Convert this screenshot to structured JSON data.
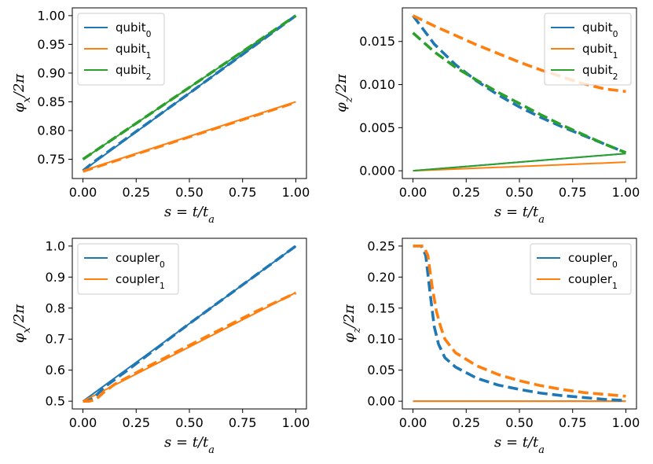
{
  "chart_data": [
    {
      "type": "line",
      "xlabel": "s = t/t_a",
      "ylabel": "φ_x/2π",
      "xlim": [
        -0.05,
        1.05
      ],
      "ylim": [
        0.7165,
        1.0135
      ],
      "xticks": [
        "0.00",
        "0.25",
        "0.50",
        "0.75",
        "1.00"
      ],
      "yticks": [
        "0.75",
        "0.80",
        "0.85",
        "0.90",
        "0.95",
        "1.00"
      ],
      "legend_position": "top-left",
      "series": [
        {
          "name": "qubit_0",
          "color": "#1f77b4",
          "style": "solid",
          "x": [
            0,
            1
          ],
          "y": [
            0.73,
            1.0
          ]
        },
        {
          "name": "qubit_1",
          "color": "#ff7f0e",
          "style": "solid",
          "x": [
            0,
            1
          ],
          "y": [
            0.73,
            0.85
          ]
        },
        {
          "name": "qubit_2",
          "color": "#2ca02c",
          "style": "solid",
          "x": [
            0,
            1
          ],
          "y": [
            0.75,
            1.0
          ]
        },
        {
          "color": "#1f77b4",
          "style": "dashed",
          "x": [
            0,
            0.05,
            0.5,
            1
          ],
          "y": [
            0.73,
            0.745,
            0.865,
            1.0
          ]
        },
        {
          "color": "#ff7f0e",
          "style": "dashed",
          "x": [
            0,
            1
          ],
          "y": [
            0.729,
            0.849
          ]
        },
        {
          "color": "#2ca02c",
          "style": "dashed",
          "x": [
            0,
            1
          ],
          "y": [
            0.75,
            1.0
          ]
        }
      ]
    },
    {
      "type": "line",
      "xlabel": "s = t/t_a",
      "ylabel": "φ_z/2π",
      "xlim": [
        -0.05,
        1.05
      ],
      "ylim": [
        -0.0009,
        0.0189
      ],
      "xticks": [
        "0.00",
        "0.25",
        "0.50",
        "0.75",
        "1.00"
      ],
      "yticks": [
        "0.000",
        "0.005",
        "0.010",
        "0.015"
      ],
      "legend_position": "top-right",
      "series": [
        {
          "name": "qubit_0",
          "color": "#1f77b4",
          "style": "solid",
          "x": [
            0,
            1
          ],
          "y": [
            0,
            0.002
          ]
        },
        {
          "name": "qubit_1",
          "color": "#ff7f0e",
          "style": "solid",
          "x": [
            0,
            1
          ],
          "y": [
            0,
            0.001
          ]
        },
        {
          "name": "qubit_2",
          "color": "#2ca02c",
          "style": "solid",
          "x": [
            0,
            1
          ],
          "y": [
            0,
            0.002
          ]
        },
        {
          "color": "#1f77b4",
          "style": "dashed",
          "x": [
            0,
            0.1,
            0.2,
            0.3,
            0.4,
            0.5,
            0.6,
            0.7,
            0.8,
            0.9,
            1.0
          ],
          "y": [
            0.018,
            0.0147,
            0.0123,
            0.0104,
            0.0088,
            0.0074,
            0.0062,
            0.0051,
            0.0041,
            0.0031,
            0.0021
          ]
        },
        {
          "color": "#ff7f0e",
          "style": "dashed",
          "x": [
            0,
            0.1,
            0.2,
            0.3,
            0.4,
            0.5,
            0.6,
            0.7,
            0.8,
            0.9,
            1.0
          ],
          "y": [
            0.018,
            0.0168,
            0.0157,
            0.0146,
            0.0136,
            0.0126,
            0.0117,
            0.0109,
            0.0101,
            0.0095,
            0.0092
          ]
        },
        {
          "color": "#2ca02c",
          "style": "dashed",
          "x": [
            0,
            0.1,
            0.2,
            0.3,
            0.4,
            0.5,
            0.6,
            0.7,
            0.8,
            0.9,
            1.0
          ],
          "y": [
            0.016,
            0.0138,
            0.012,
            0.0105,
            0.0091,
            0.0078,
            0.0065,
            0.0053,
            0.0042,
            0.0031,
            0.0021
          ]
        }
      ]
    },
    {
      "type": "line",
      "xlabel": "s = t/t_a",
      "ylabel": "φ_x/2π",
      "xlim": [
        -0.05,
        1.05
      ],
      "ylim": [
        0.475,
        1.025
      ],
      "xticks": [
        "0.00",
        "0.25",
        "0.50",
        "0.75",
        "1.00"
      ],
      "yticks": [
        "0.5",
        "0.6",
        "0.7",
        "0.8",
        "0.9",
        "1.0"
      ],
      "legend_position": "top-left",
      "series": [
        {
          "name": "coupler_0",
          "color": "#1f77b4",
          "style": "solid",
          "x": [
            0,
            1
          ],
          "y": [
            0.5,
            1.0
          ]
        },
        {
          "name": "coupler_1",
          "color": "#ff7f0e",
          "style": "solid",
          "x": [
            0,
            1
          ],
          "y": [
            0.5,
            0.85
          ]
        },
        {
          "color": "#1f77b4",
          "style": "dashed",
          "x": [
            0,
            0.02,
            0.05,
            0.1,
            0.2,
            0.5,
            0.8,
            1.0
          ],
          "y": [
            0.5,
            0.5,
            0.51,
            0.545,
            0.595,
            0.75,
            0.9,
            1.0
          ]
        },
        {
          "color": "#ff7f0e",
          "style": "dashed",
          "x": [
            0,
            0.03,
            0.06,
            0.1,
            0.15,
            0.3,
            0.5,
            0.8,
            1.0
          ],
          "y": [
            0.5,
            0.5,
            0.505,
            0.53,
            0.555,
            0.61,
            0.68,
            0.785,
            0.849
          ]
        }
      ]
    },
    {
      "type": "line",
      "xlabel": "s = t/t_a",
      "ylabel": "φ_z/2π",
      "xlim": [
        -0.05,
        1.05
      ],
      "ylim": [
        -0.0125,
        0.2625
      ],
      "xticks": [
        "0.00",
        "0.25",
        "0.50",
        "0.75",
        "1.00"
      ],
      "yticks": [
        "0.00",
        "0.05",
        "0.10",
        "0.15",
        "0.20",
        "0.25"
      ],
      "legend_position": "top-right",
      "series": [
        {
          "name": "coupler_0",
          "color": "#1f77b4",
          "style": "solid",
          "x": [
            0,
            1
          ],
          "y": [
            0,
            0
          ]
        },
        {
          "name": "coupler_1",
          "color": "#ff7f0e",
          "style": "solid",
          "x": [
            0,
            1
          ],
          "y": [
            0,
            0
          ]
        },
        {
          "color": "#1f77b4",
          "style": "dashed",
          "x": [
            0,
            0.04,
            0.06,
            0.08,
            0.1,
            0.12,
            0.15,
            0.2,
            0.3,
            0.4,
            0.5,
            0.6,
            0.7,
            0.8,
            0.9,
            1.0
          ],
          "y": [
            0.25,
            0.25,
            0.235,
            0.175,
            0.12,
            0.092,
            0.07,
            0.055,
            0.037,
            0.026,
            0.019,
            0.013,
            0.009,
            0.006,
            0.003,
            0.001
          ]
        },
        {
          "color": "#ff7f0e",
          "style": "dashed",
          "x": [
            0,
            0.05,
            0.07,
            0.09,
            0.11,
            0.13,
            0.15,
            0.2,
            0.3,
            0.4,
            0.5,
            0.6,
            0.7,
            0.8,
            0.9,
            1.0
          ],
          "y": [
            0.25,
            0.25,
            0.235,
            0.185,
            0.145,
            0.12,
            0.1,
            0.078,
            0.057,
            0.043,
            0.033,
            0.025,
            0.019,
            0.014,
            0.011,
            0.008
          ]
        }
      ]
    }
  ]
}
